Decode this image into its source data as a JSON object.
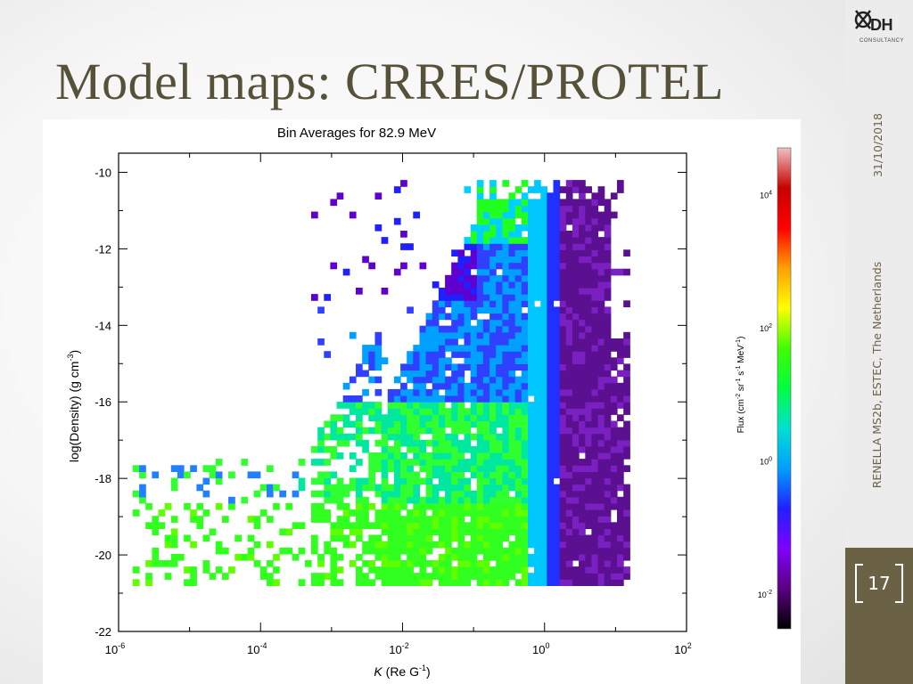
{
  "slide": {
    "title": "Model maps: CRRES/PROTEL",
    "date": "31/10/2018",
    "footer": "RENELLA MS2b, ESTEC, The Netherlands",
    "page_number": "17",
    "logo_text": "DH",
    "logo_subtext": "CONSULTANCY",
    "logo_icon": "dh-consultancy-logo-icon"
  },
  "colors": {
    "title": "#56523a",
    "sidebar_accent": "#6b6246",
    "background": "#ececec"
  },
  "chart_data": {
    "type": "heatmap",
    "title": "Bin Averages for 82.9 MeV",
    "xlabel_prefix": "K",
    "xlabel_units": "(Re G",
    "xlabel_exp": "-1",
    "xlabel_close": ")",
    "ylabel": "log(Density) (g cm-3)",
    "x_scale": "log",
    "xlim": [
      1e-06,
      100
    ],
    "ylim": [
      -22,
      -9.5
    ],
    "x_tick_labels": [
      {
        "base": "10",
        "exp": "-6",
        "value": 1e-06
      },
      {
        "base": "10",
        "exp": "-4",
        "value": 0.0001
      },
      {
        "base": "10",
        "exp": "-2",
        "value": 0.01
      },
      {
        "base": "10",
        "exp": "0",
        "value": 1
      },
      {
        "base": "10",
        "exp": "2",
        "value": 100
      }
    ],
    "y_tick_labels": [
      "-10",
      "-12",
      "-14",
      "-16",
      "-18",
      "-20",
      "-22"
    ],
    "y_tick_values": [
      -10,
      -12,
      -14,
      -16,
      -18,
      -20,
      -22
    ],
    "colorbar": {
      "label": "Flux (cm-2 sr-1 s-1 MeV-1)",
      "scale": "log",
      "range": [
        0.003,
        50000
      ],
      "ticks": [
        {
          "base": "10",
          "exp": "4",
          "value": 10000
        },
        {
          "base": "10",
          "exp": "2",
          "value": 100
        },
        {
          "base": "10",
          "exp": "0",
          "value": 1
        },
        {
          "base": "10",
          "exp": "-2",
          "value": 0.01
        }
      ],
      "colormap": [
        "#000000",
        "#5a0080",
        "#8000ff",
        "#2020ff",
        "#00a0ff",
        "#00e0d0",
        "#00ff40",
        "#40ff00",
        "#ffff00",
        "#ffa000",
        "#ff0000",
        "#c80000",
        "#f0c0c0"
      ]
    },
    "bins": {
      "description_of_distribution": "sparse bins at low K and density -18 to -20; dense green core for K 1e-3 to 1; bright vertical band near K=0.4; purple region K 0.5 to 10",
      "x_log_range": [
        -5.8,
        1.2
      ],
      "y_range": [
        -20.8,
        -10.2
      ]
    }
  }
}
